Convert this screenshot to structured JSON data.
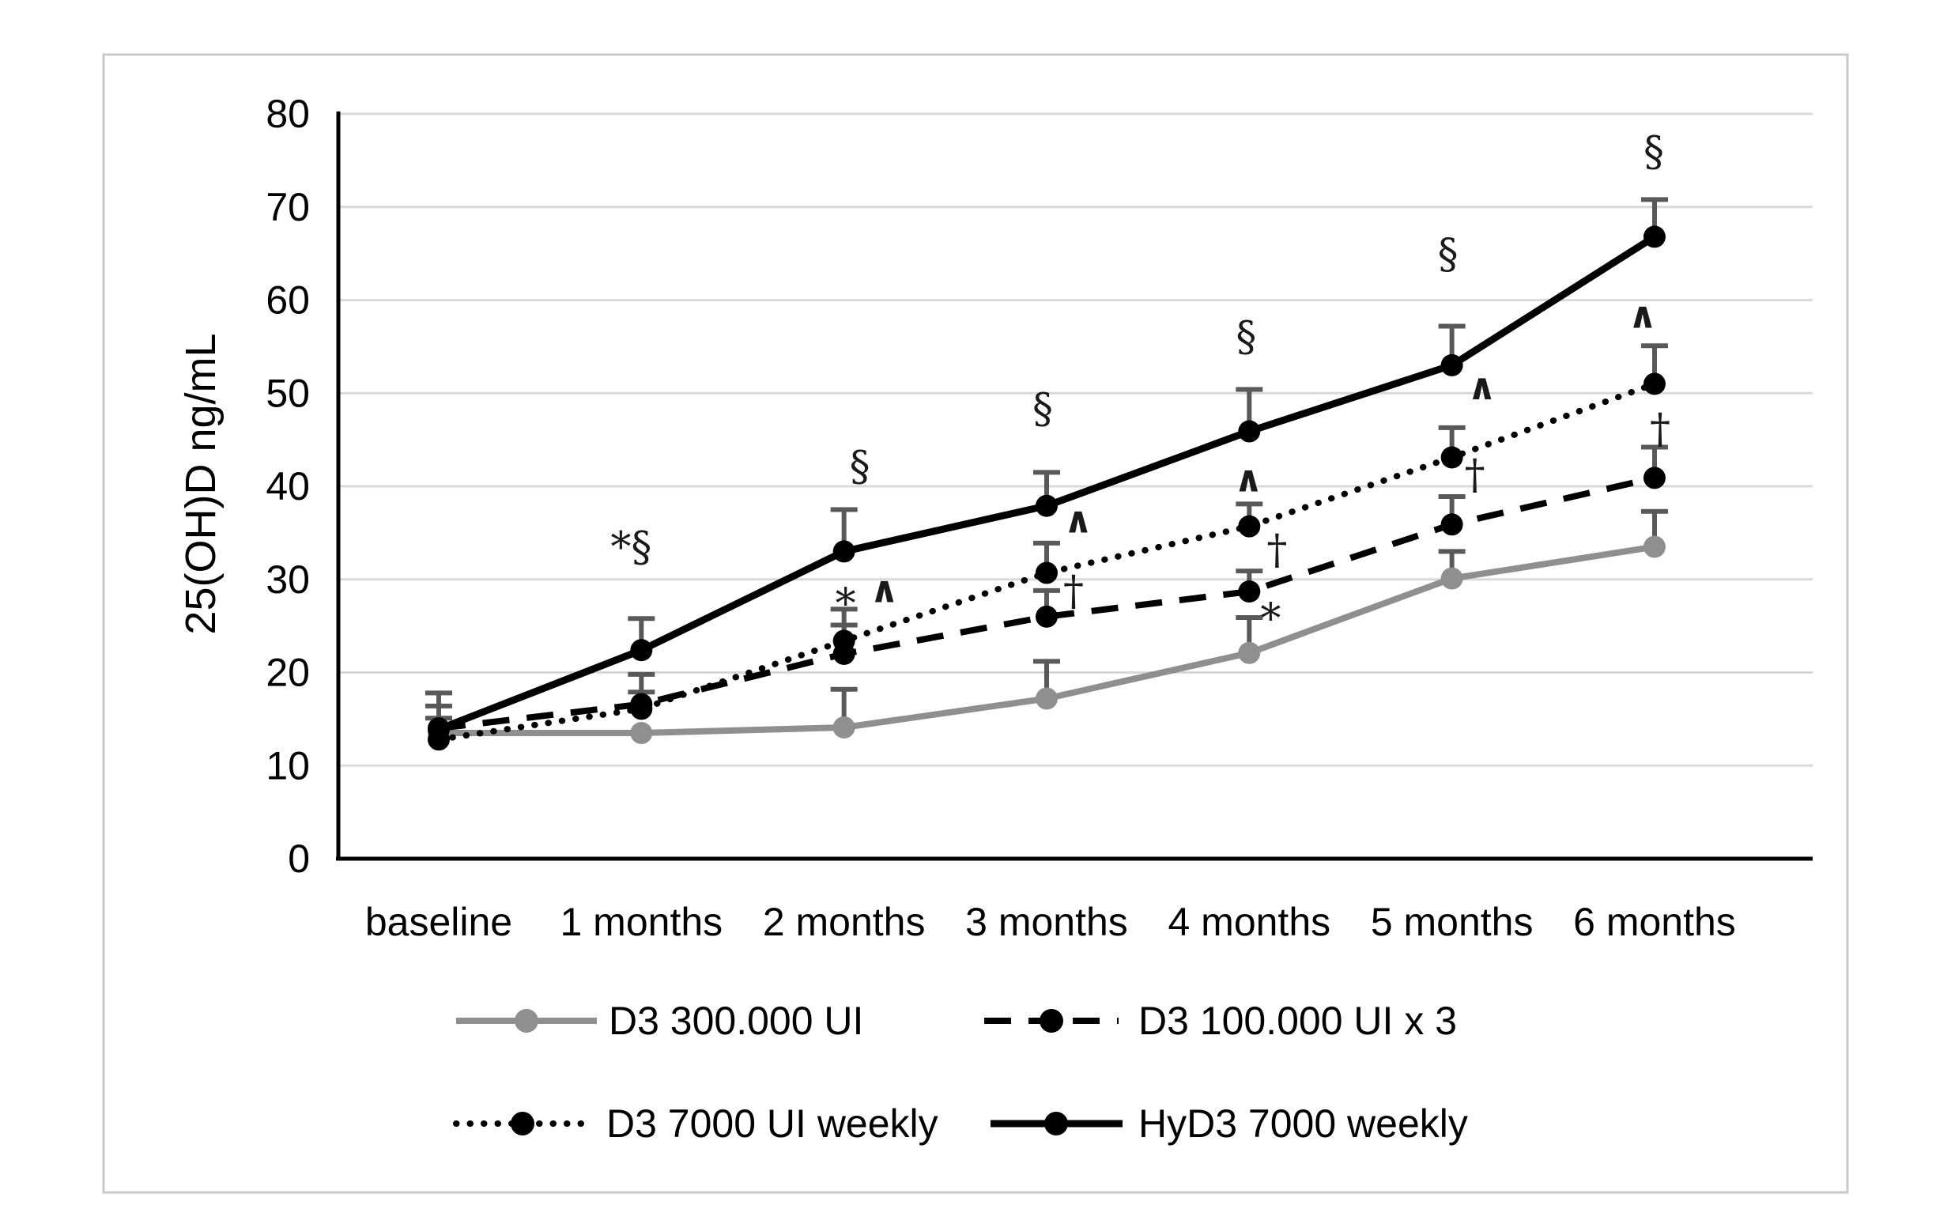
{
  "figure": {
    "kind": "line-chart-figure",
    "background": "#ffffff",
    "frame_border_color": "#c8c8c8"
  },
  "chart_data": {
    "type": "line",
    "title": "",
    "xlabel": "",
    "ylabel": "25(OH)D ng/mL",
    "ylim": [
      0,
      80
    ],
    "ytick_step": 10,
    "yticks": [
      0,
      10,
      20,
      30,
      40,
      50,
      60,
      70,
      80
    ],
    "grid": "horizontal",
    "legend_position": "bottom",
    "categories": [
      "baseline",
      "1 months",
      "2 months",
      "3 months",
      "4 months",
      "5 months",
      "6 months"
    ],
    "series": [
      {
        "name": "D3 300.000 UI",
        "slug": "d3-300000-ui",
        "line_style": "solid",
        "color": "#8f8f8f",
        "marker": "circle",
        "values": [
          13.5,
          13.5,
          14.1,
          17.2,
          22.1,
          30.1,
          33.5
        ],
        "err_top": [
          15.1,
          null,
          18.2,
          21.2,
          25.9,
          33.0,
          37.3
        ]
      },
      {
        "name": "D3 100.000 UI  x 3",
        "slug": "d3-100000-ui-x3",
        "line_style": "dashed",
        "color": "#000000",
        "marker": "circle",
        "values": [
          14.0,
          16.6,
          22.0,
          26.0,
          28.7,
          35.9,
          40.9
        ],
        "err_top": [
          17.8,
          19.8,
          25.1,
          28.8,
          30.9,
          38.9,
          44.2
        ]
      },
      {
        "name": "D3 7000 UI weekly",
        "slug": "d3-7000-ui-weekly",
        "line_style": "dotted",
        "color": "#000000",
        "marker": "circle",
        "values": [
          12.8,
          16.1,
          23.4,
          30.7,
          35.7,
          43.1,
          51.0
        ],
        "err_top": [
          16.4,
          17.9,
          26.8,
          33.9,
          38.1,
          46.3,
          55.1
        ]
      },
      {
        "name": "HyD3 7000 weekly",
        "slug": "hyd3-7000-weekly",
        "line_style": "solid",
        "color": "#000000",
        "marker": "circle",
        "values": [
          13.9,
          22.4,
          33.0,
          37.9,
          45.9,
          53.0,
          66.8
        ],
        "err_top": [
          null,
          25.8,
          37.5,
          41.5,
          50.4,
          57.2,
          70.8
        ]
      }
    ],
    "annotations": [
      {
        "cat": 1,
        "dx": -13,
        "value": 33.4,
        "symbol": "*§"
      },
      {
        "cat": 2,
        "dx": 20,
        "value": 42.1,
        "symbol": "§"
      },
      {
        "cat": 2,
        "dx": 2,
        "value": 28.7,
        "symbol": "*"
      },
      {
        "cat": 2,
        "dx": 51,
        "value": 28.9,
        "symbol": "^"
      },
      {
        "cat": 3,
        "dx": -5,
        "value": 48.3,
        "symbol": "§"
      },
      {
        "cat": 3,
        "dx": 40,
        "value": 36.4,
        "symbol": "^"
      },
      {
        "cat": 3,
        "dx": 34,
        "value": 28.7,
        "symbol": "†"
      },
      {
        "cat": 4,
        "dx": -4,
        "value": 56.0,
        "symbol": "§"
      },
      {
        "cat": 4,
        "dx": -1,
        "value": 40.8,
        "symbol": "^"
      },
      {
        "cat": 4,
        "dx": 35,
        "value": 33.1,
        "symbol": "†"
      },
      {
        "cat": 4,
        "dx": 27,
        "value": 27.1,
        "symbol": "*"
      },
      {
        "cat": 5,
        "dx": -5,
        "value": 64.9,
        "symbol": "§"
      },
      {
        "cat": 5,
        "dx": 38,
        "value": 50.7,
        "symbol": "^"
      },
      {
        "cat": 5,
        "dx": 29,
        "value": 41.2,
        "symbol": "†"
      },
      {
        "cat": 6,
        "dx": -1,
        "value": 75.9,
        "symbol": "§"
      },
      {
        "cat": 6,
        "dx": -15,
        "value": 58.4,
        "symbol": "^"
      },
      {
        "cat": 6,
        "dx": 7,
        "value": 46.1,
        "symbol": "†"
      }
    ],
    "palette": {
      "gridline": "#d9d9d9",
      "axis": "#000000",
      "error_bar": "#595959",
      "annotation_text": "#1a1a1a"
    }
  }
}
